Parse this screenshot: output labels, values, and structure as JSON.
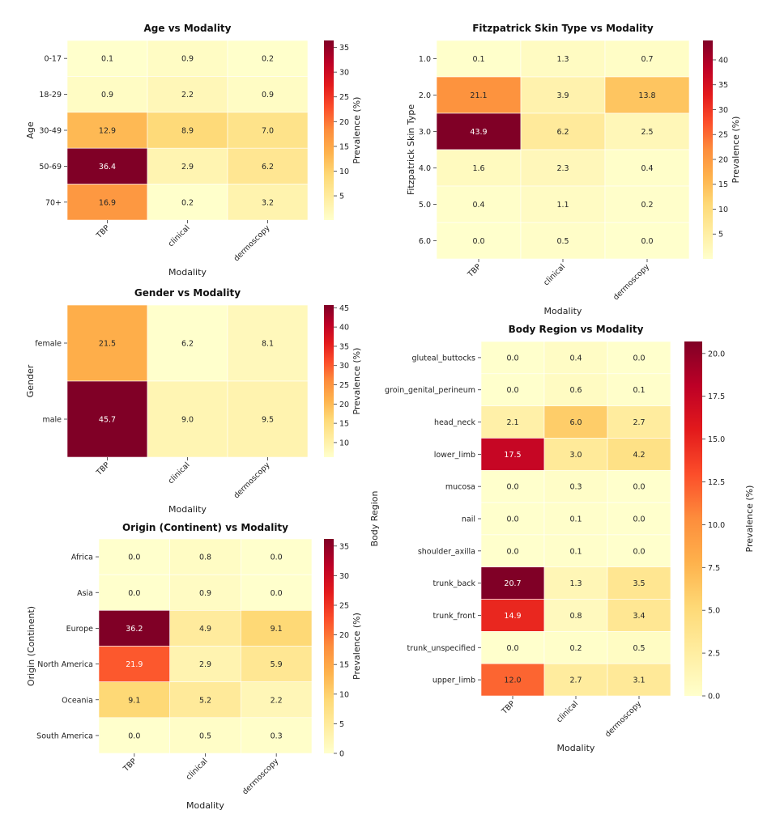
{
  "colormap": [
    "#ffffcc",
    "#ffeda0",
    "#fed976",
    "#feb24c",
    "#fd8d3c",
    "#fc4e2a",
    "#e31a1c",
    "#bd0026",
    "#800026"
  ],
  "chart_data": [
    {
      "id": "age",
      "type": "heatmap",
      "title": "Age vs Modality",
      "xlabel": "Modality",
      "ylabel": "Age",
      "colorbar_label": "Prevalence (%)",
      "x": [
        "TBP",
        "clinical",
        "dermoscopy"
      ],
      "y": [
        "0-17",
        "18-29",
        "30-49",
        "50-69",
        "70+"
      ],
      "values": [
        [
          0.1,
          0.9,
          0.2
        ],
        [
          0.9,
          2.2,
          0.9
        ],
        [
          12.9,
          8.9,
          7.0
        ],
        [
          36.4,
          2.9,
          6.2
        ],
        [
          16.9,
          0.2,
          3.2
        ]
      ],
      "cell_labels": [
        [
          "0.1",
          "0.9",
          "0.2"
        ],
        [
          "0.9",
          "2.2",
          "0.9"
        ],
        [
          "12.9",
          "8.9",
          "7.0"
        ],
        [
          "36.4",
          "2.9",
          "6.2"
        ],
        [
          "16.9",
          "0.2",
          "3.2"
        ]
      ],
      "vmin": 0.1,
      "vmax": 36.4,
      "colorbar_ticks": [
        5,
        10,
        15,
        20,
        25,
        30,
        35
      ],
      "colorbar_tick_labels": [
        "5",
        "10",
        "15",
        "20",
        "25",
        "30",
        "35"
      ]
    },
    {
      "id": "fitz",
      "type": "heatmap",
      "title": "Fitzpatrick Skin Type vs Modality",
      "xlabel": "Modality",
      "ylabel": "Fitzpatrick Skin Type",
      "colorbar_label": "Prevalence (%)",
      "x": [
        "TBP",
        "clinical",
        "dermoscopy"
      ],
      "y": [
        "1.0",
        "2.0",
        "3.0",
        "4.0",
        "5.0",
        "6.0"
      ],
      "values": [
        [
          0.1,
          1.3,
          0.7
        ],
        [
          21.1,
          3.9,
          13.8
        ],
        [
          43.9,
          6.2,
          2.5
        ],
        [
          1.6,
          2.3,
          0.4
        ],
        [
          0.4,
          1.1,
          0.2
        ],
        [
          0.0,
          0.5,
          0.0
        ]
      ],
      "cell_labels": [
        [
          "0.1",
          "1.3",
          "0.7"
        ],
        [
          "21.1",
          "3.9",
          "13.8"
        ],
        [
          "43.9",
          "6.2",
          "2.5"
        ],
        [
          "1.6",
          "2.3",
          "0.4"
        ],
        [
          "0.4",
          "1.1",
          "0.2"
        ],
        [
          "0.0",
          "0.5",
          "0.0"
        ]
      ],
      "vmin": 0.0,
      "vmax": 43.9,
      "colorbar_ticks": [
        5,
        10,
        15,
        20,
        25,
        30,
        35,
        40
      ],
      "colorbar_tick_labels": [
        "5",
        "10",
        "15",
        "20",
        "25",
        "30",
        "35",
        "40"
      ]
    },
    {
      "id": "gender",
      "type": "heatmap",
      "title": "Gender vs Modality",
      "xlabel": "Modality",
      "ylabel": "Gender",
      "colorbar_label": "Prevalence (%)",
      "x": [
        "TBP",
        "clinical",
        "dermoscopy"
      ],
      "y": [
        "female",
        "male"
      ],
      "values": [
        [
          21.5,
          6.2,
          8.1
        ],
        [
          45.7,
          9.0,
          9.5
        ]
      ],
      "cell_labels": [
        [
          "21.5",
          "6.2",
          "8.1"
        ],
        [
          "45.7",
          "9.0",
          "9.5"
        ]
      ],
      "vmin": 6.2,
      "vmax": 45.7,
      "colorbar_ticks": [
        10,
        15,
        20,
        25,
        30,
        35,
        40,
        45
      ],
      "colorbar_tick_labels": [
        "10",
        "15",
        "20",
        "25",
        "30",
        "35",
        "40",
        "45"
      ]
    },
    {
      "id": "origin",
      "type": "heatmap",
      "title": "Origin (Continent) vs Modality",
      "xlabel": "Modality",
      "ylabel": "Origin (Continent)",
      "colorbar_label": "Prevalence (%)",
      "x": [
        "TBP",
        "clinical",
        "dermoscopy"
      ],
      "y": [
        "Africa",
        "Asia",
        "Europe",
        "North America",
        "Oceania",
        "South America"
      ],
      "values": [
        [
          0.0,
          0.8,
          0.0
        ],
        [
          0.0,
          0.9,
          0.0
        ],
        [
          36.2,
          4.9,
          9.1
        ],
        [
          21.9,
          2.9,
          5.9
        ],
        [
          9.1,
          5.2,
          2.2
        ],
        [
          0.0,
          0.5,
          0.3
        ]
      ],
      "cell_labels": [
        [
          "0.0",
          "0.8",
          "0.0"
        ],
        [
          "0.0",
          "0.9",
          "0.0"
        ],
        [
          "36.2",
          "4.9",
          "9.1"
        ],
        [
          "21.9",
          "2.9",
          "5.9"
        ],
        [
          "9.1",
          "5.2",
          "2.2"
        ],
        [
          "0.0",
          "0.5",
          "0.3"
        ]
      ],
      "vmin": 0.0,
      "vmax": 36.2,
      "colorbar_ticks": [
        0,
        5,
        10,
        15,
        20,
        25,
        30,
        35
      ],
      "colorbar_tick_labels": [
        "0",
        "5",
        "10",
        "15",
        "20",
        "25",
        "30",
        "35"
      ]
    },
    {
      "id": "body",
      "type": "heatmap",
      "title": "Body Region vs Modality",
      "xlabel": "Modality",
      "ylabel": "Body Region",
      "colorbar_label": "Prevalence (%)",
      "x": [
        "TBP",
        "clinical",
        "dermoscopy"
      ],
      "y": [
        "gluteal_buttocks",
        "groin_genital_perineum",
        "head_neck",
        "lower_limb",
        "mucosa",
        "nail",
        "shoulder_axilla",
        "trunk_back",
        "trunk_front",
        "trunk_unspecified",
        "upper_limb"
      ],
      "values": [
        [
          0.0,
          0.4,
          0.0
        ],
        [
          0.0,
          0.6,
          0.1
        ],
        [
          2.1,
          6.0,
          2.7
        ],
        [
          17.5,
          3.0,
          4.2
        ],
        [
          0.0,
          0.3,
          0.0
        ],
        [
          0.0,
          0.1,
          0.0
        ],
        [
          0.0,
          0.1,
          0.0
        ],
        [
          20.7,
          1.3,
          3.5
        ],
        [
          14.9,
          0.8,
          3.4
        ],
        [
          0.0,
          0.2,
          0.5
        ],
        [
          12.0,
          2.7,
          3.1
        ]
      ],
      "cell_labels": [
        [
          "0.0",
          "0.4",
          "0.0"
        ],
        [
          "0.0",
          "0.6",
          "0.1"
        ],
        [
          "2.1",
          "6.0",
          "2.7"
        ],
        [
          "17.5",
          "3.0",
          "4.2"
        ],
        [
          "0.0",
          "0.3",
          "0.0"
        ],
        [
          "0.0",
          "0.1",
          "0.0"
        ],
        [
          "0.0",
          "0.1",
          "0.0"
        ],
        [
          "20.7",
          "1.3",
          "3.5"
        ],
        [
          "14.9",
          "0.8",
          "3.4"
        ],
        [
          "0.0",
          "0.2",
          "0.5"
        ],
        [
          "12.0",
          "2.7",
          "3.1"
        ]
      ],
      "vmin": 0.0,
      "vmax": 20.7,
      "colorbar_ticks": [
        0,
        2.5,
        5,
        7.5,
        10,
        12.5,
        15,
        17.5,
        20
      ],
      "colorbar_tick_labels": [
        "0.0",
        "2.5",
        "5.0",
        "7.5",
        "10.0",
        "12.5",
        "15.0",
        "17.5",
        "20.0"
      ]
    }
  ]
}
